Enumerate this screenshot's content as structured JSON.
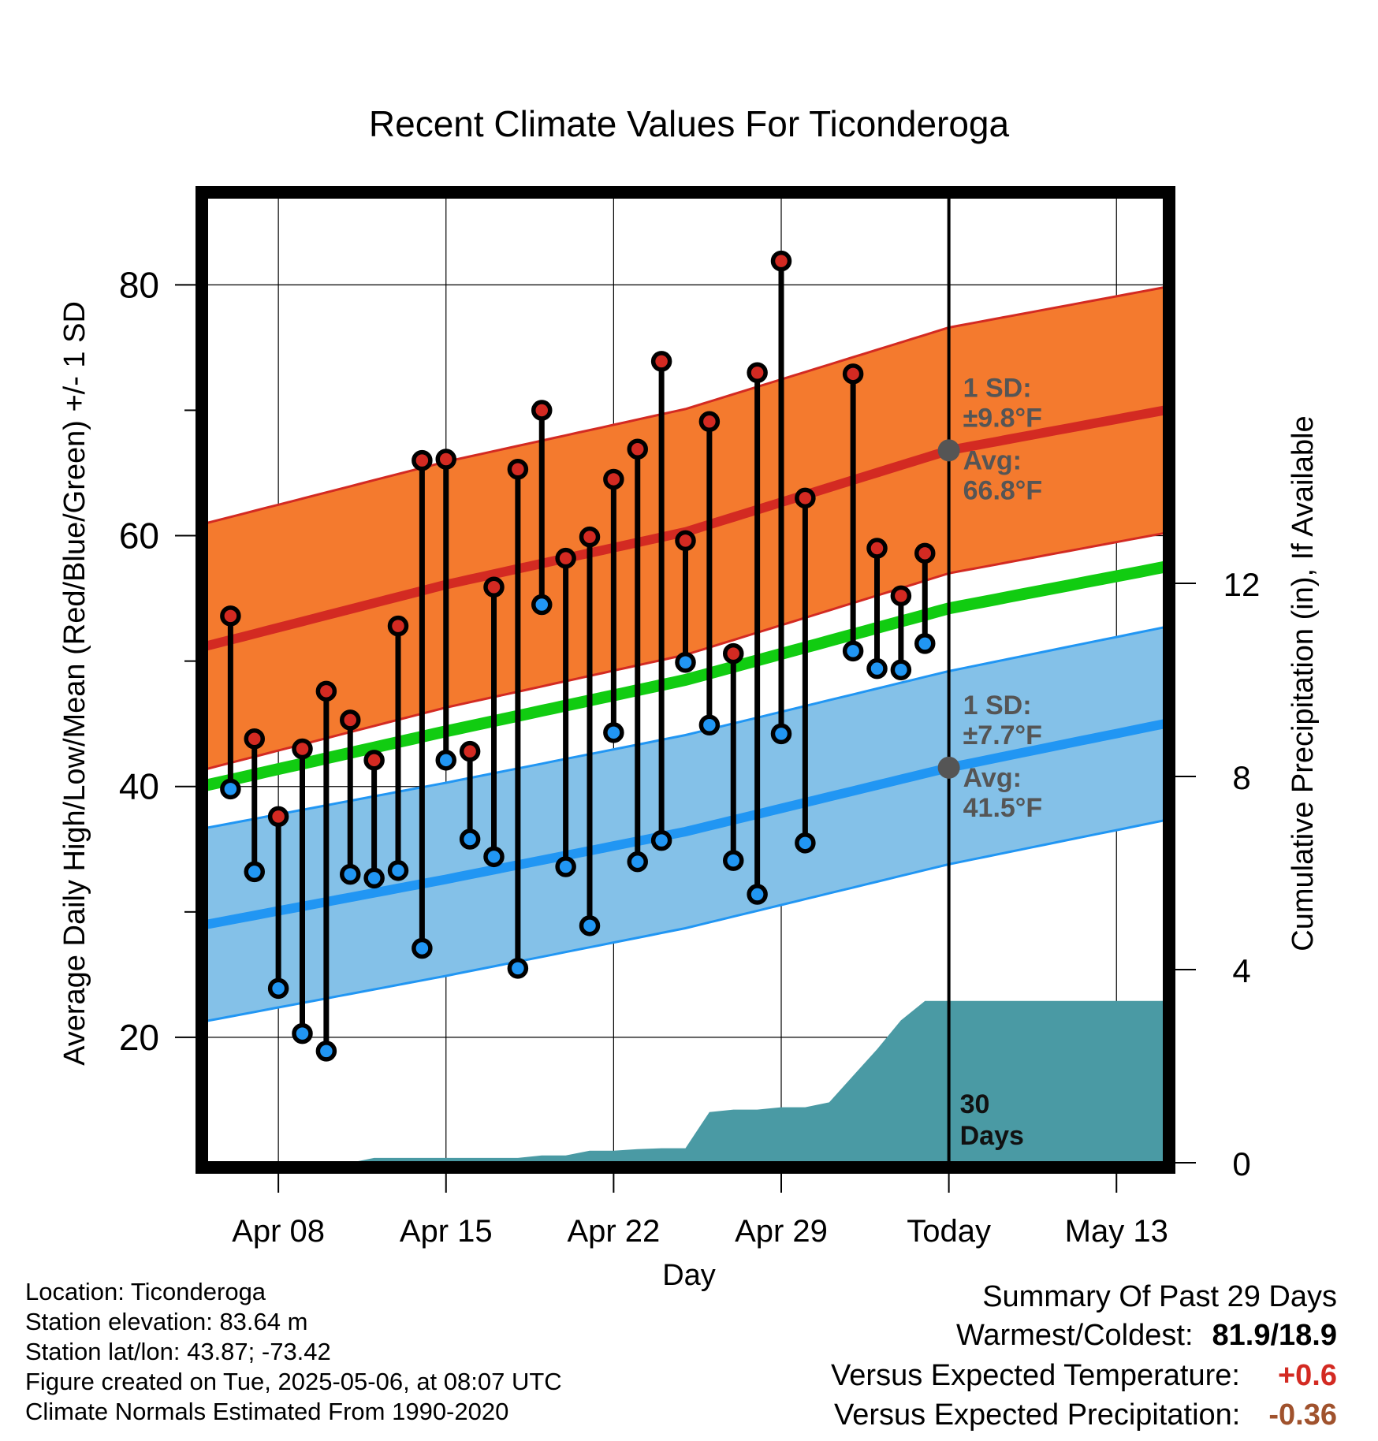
{
  "chart_data": {
    "type": "line",
    "title": "Recent Climate Values For Ticonderoga",
    "xlabel": "Day",
    "ylabel": "Average Daily High/Low/Mean (Red/Blue/Green) +/- 1 SD",
    "y2label": "Cumulative Precipitation (in), If Available",
    "x_ticks": [
      "Apr 08",
      "Apr 15",
      "Apr 22",
      "Apr 29",
      "Today",
      "May 13"
    ],
    "x_tick_dates": [
      "2025-04-08",
      "2025-04-15",
      "2025-04-22",
      "2025-04-29",
      "2025-05-06",
      "2025-05-13"
    ],
    "xlim": [
      "2025-04-05",
      "2025-05-15"
    ],
    "today": "2025-05-06",
    "ylim": [
      10,
      87
    ],
    "y_ticks": [
      20,
      40,
      60,
      80
    ],
    "y2lim": [
      0,
      20
    ],
    "y2_ticks": [
      0,
      4,
      8,
      12
    ],
    "grid": true,
    "series": [
      {
        "name": "High",
        "color": "#d32a22",
        "dates": [
          "2025-04-06",
          "2025-04-07",
          "2025-04-08",
          "2025-04-09",
          "2025-04-10",
          "2025-04-11",
          "2025-04-12",
          "2025-04-13",
          "2025-04-14",
          "2025-04-15",
          "2025-04-16",
          "2025-04-17",
          "2025-04-18",
          "2025-04-19",
          "2025-04-20",
          "2025-04-21",
          "2025-04-22",
          "2025-04-23",
          "2025-04-24",
          "2025-04-25",
          "2025-04-26",
          "2025-04-27",
          "2025-04-28",
          "2025-04-29",
          "2025-04-30",
          "2025-05-02",
          "2025-05-03",
          "2025-05-04",
          "2025-05-05"
        ],
        "values": [
          53.6,
          43.8,
          37.6,
          43.0,
          47.6,
          45.3,
          42.1,
          52.8,
          66.0,
          66.1,
          42.8,
          55.9,
          65.3,
          70.0,
          58.2,
          59.9,
          64.5,
          66.9,
          73.9,
          59.6,
          69.1,
          50.6,
          73.0,
          81.9,
          63.0,
          72.9,
          59.0,
          55.2,
          58.6
        ]
      },
      {
        "name": "Low",
        "color": "#2196f3",
        "dates": [
          "2025-04-06",
          "2025-04-07",
          "2025-04-08",
          "2025-04-09",
          "2025-04-10",
          "2025-04-11",
          "2025-04-12",
          "2025-04-13",
          "2025-04-14",
          "2025-04-15",
          "2025-04-16",
          "2025-04-17",
          "2025-04-18",
          "2025-04-19",
          "2025-04-20",
          "2025-04-21",
          "2025-04-22",
          "2025-04-23",
          "2025-04-24",
          "2025-04-25",
          "2025-04-26",
          "2025-04-27",
          "2025-04-28",
          "2025-04-29",
          "2025-04-30",
          "2025-05-02",
          "2025-05-03",
          "2025-05-04",
          "2025-05-05"
        ],
        "values": [
          39.8,
          33.2,
          23.9,
          20.3,
          18.9,
          33.0,
          32.7,
          33.3,
          27.1,
          42.1,
          35.8,
          34.4,
          25.5,
          54.5,
          33.6,
          28.9,
          44.3,
          34.0,
          35.7,
          49.9,
          44.9,
          34.1,
          31.4,
          44.2,
          35.5,
          50.8,
          49.4,
          49.3,
          51.4
        ]
      },
      {
        "name": "Normal High",
        "color": "#d32a22",
        "dates": [
          "2025-04-05",
          "2025-04-15",
          "2025-04-25",
          "2025-05-06",
          "2025-05-15"
        ],
        "values": [
          51.2,
          56.1,
          60.3,
          66.8,
          70.0
        ]
      },
      {
        "name": "Normal Low",
        "color": "#2196f3",
        "dates": [
          "2025-04-05",
          "2025-04-15",
          "2025-04-25",
          "2025-05-06",
          "2025-05-15"
        ],
        "values": [
          29.0,
          32.6,
          36.4,
          41.5,
          45.0
        ]
      },
      {
        "name": "Normal Mean",
        "color": "#11cc11",
        "dates": [
          "2025-04-05",
          "2025-04-15",
          "2025-04-25",
          "2025-05-06",
          "2025-05-15"
        ],
        "values": [
          40.1,
          44.4,
          48.5,
          54.2,
          57.5
        ]
      },
      {
        "name": "Cumulative Precipitation",
        "color": "#4a9aa4",
        "axis": "y2",
        "dates": [
          "2025-04-05",
          "2025-04-11",
          "2025-04-12",
          "2025-04-18",
          "2025-04-19",
          "2025-04-20",
          "2025-04-21",
          "2025-04-22",
          "2025-04-23",
          "2025-04-24",
          "2025-04-25",
          "2025-04-26",
          "2025-04-27",
          "2025-04-28",
          "2025-04-29",
          "2025-04-30",
          "2025-05-01",
          "2025-05-02",
          "2025-05-03",
          "2025-05-04",
          "2025-05-05",
          "2025-05-15"
        ],
        "values": [
          0.0,
          0.0,
          0.1,
          0.1,
          0.15,
          0.15,
          0.25,
          0.25,
          0.28,
          0.3,
          0.3,
          1.05,
          1.1,
          1.1,
          1.15,
          1.15,
          1.25,
          1.8,
          2.35,
          2.95,
          3.35,
          3.35
        ]
      }
    ],
    "sd_high": 9.8,
    "sd_low": 7.7,
    "annotations": {
      "high_sd": "1 SD:",
      "high_sd_val": "±9.8°F",
      "high_avg": "Avg:",
      "high_avg_val": "66.8°F",
      "low_sd": "1 SD:",
      "low_sd_val": "±7.7°F",
      "low_avg": "Avg:",
      "low_avg_val": "41.5°F",
      "days_num": "30",
      "days_word": "Days"
    },
    "colors": {
      "high_band": "#f47a2e",
      "high_line": "#d32a22",
      "low_band": "#84c1e8",
      "low_line": "#2196f3",
      "mean_line": "#11cc11",
      "precip": "#4a9aa4",
      "annotation": "#555555"
    }
  },
  "info": {
    "location": "Location: Ticonderoga",
    "elevation": "Station elevation: 83.64 m",
    "latlon": "Station lat/lon: 43.87; -73.42",
    "created": "Figure created on Tue, 2025-05-06, at 08:07 UTC",
    "normals": "Climate Normals Estimated From 1990-2020"
  },
  "summary": {
    "title": "Summary Of Past 29 Days",
    "warmest_label": "Warmest/Coldest:",
    "warmest_value": "81.9/18.9",
    "temp_label": "Versus Expected Temperature:",
    "temp_value": "+0.6",
    "temp_color": "#d32a22",
    "precip_label": "Versus Expected Precipitation:",
    "precip_value": "-0.36",
    "precip_color": "#a0522d"
  }
}
